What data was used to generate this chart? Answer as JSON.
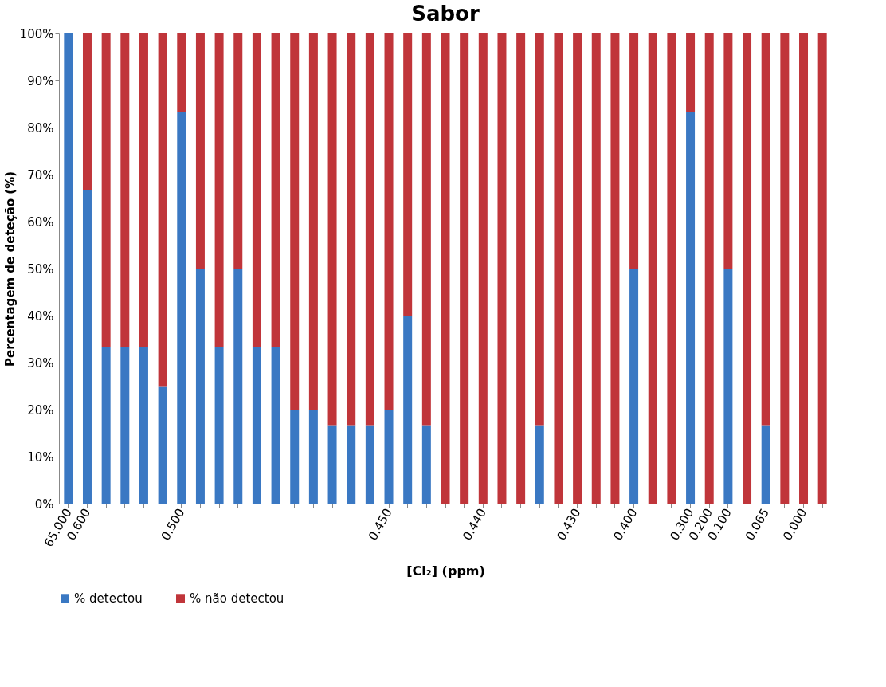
{
  "chart_data": {
    "type": "bar",
    "title": "Sabor",
    "xlabel": "[Cl₂] (ppm)",
    "ylabel": "Percentagem de deteção (%)",
    "categories": [
      "65.000",
      "0.600",
      null,
      null,
      null,
      null,
      "0.500",
      null,
      null,
      null,
      null,
      null,
      null,
      null,
      null,
      null,
      null,
      "0.450",
      null,
      null,
      null,
      null,
      "0.440",
      null,
      null,
      null,
      null,
      "0.430",
      null,
      null,
      "0.400",
      null,
      null,
      "0.300",
      "0.200",
      "0.100",
      null,
      "0.065",
      null,
      "0.000",
      null
    ],
    "stacked": true,
    "series": [
      {
        "name": "% detectou",
        "color": "#3a78c3",
        "values": [
          100,
          66.7,
          33.3,
          33.3,
          33.3,
          25,
          83.3,
          50,
          33.3,
          50,
          33.3,
          33.3,
          20,
          20,
          16.7,
          16.7,
          16.7,
          20,
          40,
          16.7,
          0,
          0,
          0,
          0,
          0,
          16.7,
          0,
          0,
          0,
          0,
          50,
          0,
          0,
          83.3,
          0,
          50,
          0,
          16.7,
          0,
          0,
          0
        ]
      },
      {
        "name": "% não detectou",
        "color": "#c0353a",
        "values": [
          0,
          33.3,
          66.7,
          66.7,
          66.7,
          75,
          16.7,
          50,
          66.7,
          50,
          66.7,
          66.7,
          80,
          80,
          83.3,
          83.3,
          83.3,
          80,
          60,
          83.3,
          100,
          100,
          100,
          100,
          100,
          83.3,
          100,
          100,
          100,
          100,
          50,
          100,
          100,
          16.7,
          100,
          50,
          100,
          83.3,
          100,
          100,
          100
        ]
      }
    ],
    "ylim": [
      0,
      100
    ],
    "yticks": [
      {
        "value": 0,
        "label": "0%"
      },
      {
        "value": 10,
        "label": "10%"
      },
      {
        "value": 20,
        "label": "20%"
      },
      {
        "value": 30,
        "label": "30%"
      },
      {
        "value": 40,
        "label": "40%"
      },
      {
        "value": 50,
        "label": "50%"
      },
      {
        "value": 60,
        "label": "60%"
      },
      {
        "value": 70,
        "label": "70%"
      },
      {
        "value": 80,
        "label": "80%"
      },
      {
        "value": 90,
        "label": "90%"
      },
      {
        "value": 100,
        "label": "100%"
      }
    ],
    "legend": "bottom",
    "grid": false
  }
}
